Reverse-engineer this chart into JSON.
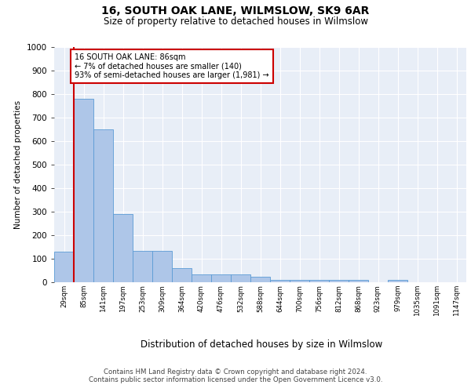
{
  "title1": "16, SOUTH OAK LANE, WILMSLOW, SK9 6AR",
  "title2": "Size of property relative to detached houses in Wilmslow",
  "xlabel": "Distribution of detached houses by size in Wilmslow",
  "ylabel": "Number of detached properties",
  "bin_labels": [
    "29sqm",
    "85sqm",
    "141sqm",
    "197sqm",
    "253sqm",
    "309sqm",
    "364sqm",
    "420sqm",
    "476sqm",
    "532sqm",
    "588sqm",
    "644sqm",
    "700sqm",
    "756sqm",
    "812sqm",
    "868sqm",
    "923sqm",
    "979sqm",
    "1035sqm",
    "1091sqm",
    "1147sqm"
  ],
  "bar_heights": [
    130,
    780,
    650,
    290,
    135,
    135,
    60,
    35,
    35,
    35,
    25,
    10,
    10,
    10,
    10,
    10,
    0,
    10,
    0,
    0,
    0
  ],
  "bar_color": "#aec6e8",
  "bar_edge_color": "#5b9bd5",
  "background_color": "#e8eef7",
  "vline_color": "#cc0000",
  "annotation_text": "16 SOUTH OAK LANE: 86sqm\n← 7% of detached houses are smaller (140)\n93% of semi-detached houses are larger (1,981) →",
  "annotation_box_color": "#ffffff",
  "annotation_box_edge": "#cc0000",
  "ylim": [
    0,
    1000
  ],
  "yticks": [
    0,
    100,
    200,
    300,
    400,
    500,
    600,
    700,
    800,
    900,
    1000
  ],
  "footer1": "Contains HM Land Registry data © Crown copyright and database right 2024.",
  "footer2": "Contains public sector information licensed under the Open Government Licence v3.0."
}
